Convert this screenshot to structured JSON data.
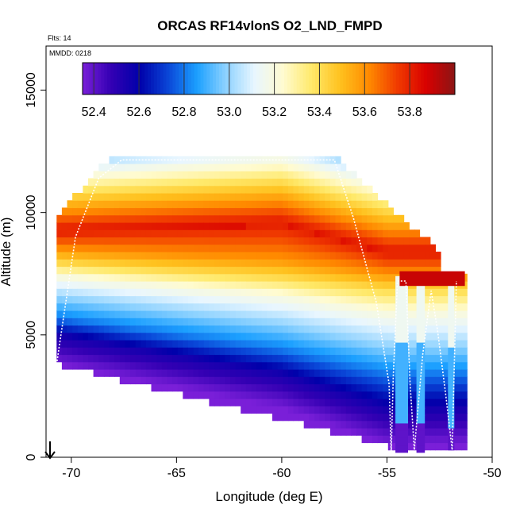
{
  "chart_data": {
    "type": "heatmap",
    "title": "ORCAS RF14vlonS O2_LND_FMPD",
    "xlabel": "Longitude (deg E)",
    "ylabel": "Altitude (m)",
    "xlim": [
      -71.2,
      -50
    ],
    "ylim": [
      0,
      16800
    ],
    "x_ticks": [
      -70,
      -65,
      -60,
      -55,
      -50
    ],
    "x_tick_labels": [
      "-70",
      "-65",
      "-60",
      "-55",
      "-50"
    ],
    "y_ticks": [
      0,
      5000,
      10000,
      15000
    ],
    "y_tick_labels": [
      "0",
      "5000",
      "10000",
      "15000"
    ],
    "annotations": [
      "Flts: 14",
      "MMDD: 0218"
    ],
    "colorbar": {
      "min": 52.35,
      "max": 54.0,
      "ticks": [
        52.4,
        52.6,
        52.8,
        53.0,
        53.2,
        53.4,
        53.6,
        53.8
      ],
      "tick_labels": [
        "52.4",
        "52.6",
        "52.8",
        "53.0",
        "53.2",
        "53.4",
        "53.6",
        "53.8"
      ],
      "colors": [
        "#7a1fd8",
        "#3300b3",
        "#0000aa",
        "#0a47d8",
        "#1ca0ff",
        "#8dd2ff",
        "#e8f6ff",
        "#fffbd0",
        "#ffe96a",
        "#ffc11e",
        "#ff8a00",
        "#f03a00",
        "#d80000",
        "#8b1515"
      ]
    },
    "domain": {
      "left_x": -70.7,
      "top_left": [
        -68.2,
        12200
      ],
      "top_right": [
        -57.3,
        12200
      ],
      "slope_end": [
        -52.5,
        8400
      ]
    },
    "profiles": [
      {
        "x": -70.7,
        "y": [
          3800,
          5000,
          5700,
          6600,
          7400,
          7900,
          8500,
          9200,
          9900
        ]
      },
      {
        "x": -60.0,
        "y": [
          2000,
          3400,
          4400,
          5500,
          6600,
          7300,
          8100,
          9500,
          10700
        ]
      },
      {
        "x": -55.0,
        "y": [
          500,
          2000,
          3400,
          4600,
          5900,
          6800,
          7500,
          8300,
          9600
        ]
      }
    ],
    "flight_track": [
      [
        -70.7,
        3800
      ],
      [
        -69.8,
        9000
      ],
      [
        -68.7,
        11400
      ],
      [
        -67.6,
        12150
      ],
      [
        -57.5,
        12150
      ],
      [
        -56.6,
        9800
      ],
      [
        -55.5,
        6300
      ],
      [
        -54.9,
        3000
      ],
      [
        -54.8,
        200
      ],
      [
        -54.7,
        3300
      ],
      [
        -54.5,
        7200
      ],
      [
        -54.1,
        7200
      ],
      [
        -53.9,
        3000
      ],
      [
        -53.7,
        300
      ],
      [
        -53.3,
        4200
      ],
      [
        -52.9,
        6800
      ],
      [
        -52.6,
        5200
      ],
      [
        -52.2,
        2500
      ],
      [
        -51.9,
        300
      ],
      [
        -51.7,
        7200
      ]
    ],
    "grid": false,
    "legend": "none"
  }
}
